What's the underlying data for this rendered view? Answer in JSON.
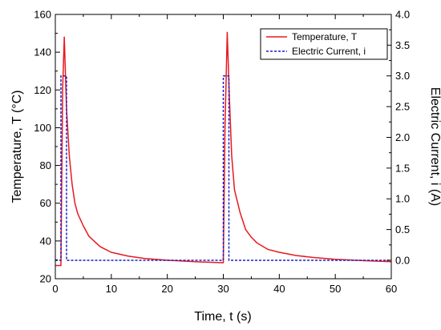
{
  "chart_data": {
    "type": "line",
    "xlabel": "Time, t (s)",
    "ylabel_left": "Temperature, T (°C)",
    "ylabel_right": "Electric Current, i (A)",
    "xlim": [
      0,
      60
    ],
    "ylim_left": [
      20,
      160
    ],
    "ylim_right": [
      -0.3,
      4.0
    ],
    "x_ticks": [
      "0",
      "10",
      "20",
      "30",
      "40",
      "50",
      "60"
    ],
    "y_left_ticks": [
      "20",
      "40",
      "60",
      "80",
      "100",
      "120",
      "140",
      "160"
    ],
    "y_right_ticks": [
      "0.0",
      "0.5",
      "1.0",
      "1.5",
      "2.0",
      "2.5",
      "3.0",
      "3.5",
      "4.0"
    ],
    "grid": false,
    "legend_position": "top-right",
    "series": [
      {
        "name": "Temperature, T",
        "axis": "left",
        "color": "#e8191e",
        "style": "solid",
        "points": [
          [
            0.0,
            27.0
          ],
          [
            1.0,
            27.0
          ],
          [
            1.3,
            120.0
          ],
          [
            1.6,
            148.0
          ],
          [
            2.0,
            110.0
          ],
          [
            2.5,
            85.0
          ],
          [
            3.0,
            70.0
          ],
          [
            3.5,
            60.0
          ],
          [
            4.0,
            54.5
          ],
          [
            5.0,
            48.0
          ],
          [
            6.0,
            42.5
          ],
          [
            8.0,
            37.0
          ],
          [
            10.0,
            34.0
          ],
          [
            13.0,
            32.0
          ],
          [
            16.0,
            30.7
          ],
          [
            20.0,
            29.8
          ],
          [
            25.0,
            29.0
          ],
          [
            29.8,
            28.5
          ],
          [
            30.0,
            28.5
          ],
          [
            30.3,
            100.0
          ],
          [
            30.7,
            150.5
          ],
          [
            31.1,
            115.0
          ],
          [
            31.5,
            85.0
          ],
          [
            32.0,
            67.0
          ],
          [
            33.0,
            55.0
          ],
          [
            34.0,
            46.0
          ],
          [
            35.0,
            42.0
          ],
          [
            36.0,
            39.0
          ],
          [
            38.0,
            35.5
          ],
          [
            40.0,
            34.0
          ],
          [
            43.0,
            32.3
          ],
          [
            46.0,
            31.3
          ],
          [
            50.0,
            30.3
          ],
          [
            55.0,
            29.6
          ],
          [
            60.0,
            29.0
          ]
        ]
      },
      {
        "name": "Electric Current, i",
        "axis": "right",
        "color": "#1d1dc8",
        "style": "dashed",
        "points": [
          [
            0.0,
            0.0
          ],
          [
            1.0,
            0.0
          ],
          [
            1.0,
            3.0
          ],
          [
            2.0,
            3.0
          ],
          [
            2.0,
            0.0
          ],
          [
            30.0,
            0.0
          ],
          [
            30.0,
            3.0
          ],
          [
            31.0,
            3.0
          ],
          [
            31.0,
            0.0
          ],
          [
            60.0,
            0.0
          ]
        ]
      }
    ]
  }
}
